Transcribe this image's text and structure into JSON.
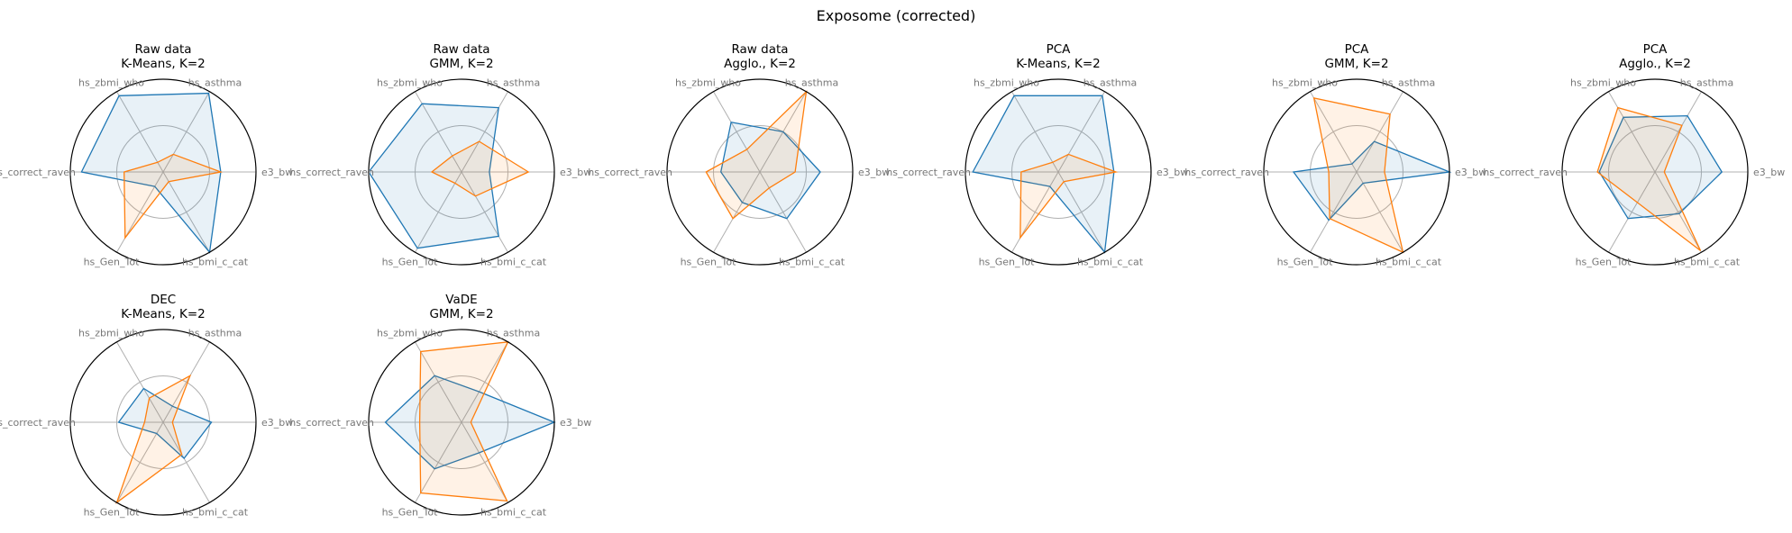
{
  "figure": {
    "title": "Exposome (corrected)"
  },
  "colors": {
    "cluster_0": "#1f77b4",
    "cluster_1": "#ff7f0e"
  },
  "chart_data": [
    {
      "type": "radar",
      "title_line1": "Raw data",
      "title_line2": "K-Means, K=2",
      "axes": [
        "e3_bw",
        "hs_asthma",
        "hs_zbmi_who",
        "hs_correct_raven",
        "hs_Gen_Tot",
        "hs_bmi_c_cat"
      ],
      "rmax": 1.0,
      "grid": [
        0.5
      ],
      "series": [
        {
          "values": [
            0.62,
            0.98,
            0.95,
            0.88,
            0.18,
            1.0
          ]
        },
        {
          "values": [
            0.62,
            0.22,
            0.12,
            0.42,
            0.82,
            0.12
          ]
        }
      ]
    },
    {
      "type": "radar",
      "title_line1": "Raw data",
      "title_line2": "GMM, K=2",
      "axes": [
        "e3_bw",
        "hs_asthma",
        "hs_zbmi_who",
        "hs_correct_raven",
        "hs_Gen_Tot",
        "hs_bmi_c_cat"
      ],
      "rmax": 1.0,
      "grid": [
        0.5
      ],
      "series": [
        {
          "values": [
            0.3,
            0.8,
            0.85,
            1.0,
            0.95,
            0.8
          ]
        },
        {
          "values": [
            0.72,
            0.38,
            0.2,
            0.32,
            0.14,
            0.3
          ]
        }
      ]
    },
    {
      "type": "radar",
      "title_line1": "Raw data",
      "title_line2": "Agglo., K=2",
      "axes": [
        "e3_bw",
        "hs_asthma",
        "hs_zbmi_who",
        "hs_correct_raven",
        "hs_Gen_Tot",
        "hs_bmi_c_cat"
      ],
      "rmax": 1.0,
      "grid": [
        0.5
      ],
      "series": [
        {
          "values": [
            0.65,
            0.5,
            0.62,
            0.42,
            0.38,
            0.58
          ]
        },
        {
          "values": [
            0.38,
            1.0,
            0.28,
            0.58,
            0.58,
            0.2
          ]
        }
      ]
    },
    {
      "type": "radar",
      "title_line1": "PCA",
      "title_line2": "K-Means, K=2",
      "axes": [
        "e3_bw",
        "hs_asthma",
        "hs_zbmi_who",
        "hs_correct_raven",
        "hs_Gen_Tot",
        "hs_bmi_c_cat"
      ],
      "rmax": 1.0,
      "grid": [
        0.5
      ],
      "series": [
        {
          "values": [
            0.6,
            0.95,
            0.95,
            0.92,
            0.18,
            1.0
          ]
        },
        {
          "values": [
            0.62,
            0.22,
            0.12,
            0.4,
            0.82,
            0.12
          ]
        }
      ]
    },
    {
      "type": "radar",
      "title_line1": "PCA",
      "title_line2": "GMM, K=2",
      "axes": [
        "e3_bw",
        "hs_asthma",
        "hs_zbmi_who",
        "hs_correct_raven",
        "hs_Gen_Tot",
        "hs_bmi_c_cat"
      ],
      "rmax": 1.0,
      "grid": [
        0.5
      ],
      "series": [
        {
          "values": [
            1.0,
            0.38,
            0.1,
            0.68,
            0.6,
            0.14
          ]
        },
        {
          "values": [
            0.3,
            0.72,
            0.92,
            0.3,
            0.58,
            1.0
          ]
        }
      ]
    },
    {
      "type": "radar",
      "title_line1": "PCA",
      "title_line2": "Agglo., K=2",
      "axes": [
        "e3_bw",
        "hs_asthma",
        "hs_zbmi_who",
        "hs_correct_raven",
        "hs_Gen_Tot",
        "hs_bmi_c_cat"
      ],
      "rmax": 1.0,
      "grid": [
        0.5
      ],
      "series": [
        {
          "values": [
            0.72,
            0.7,
            0.68,
            0.6,
            0.58,
            0.52
          ]
        },
        {
          "values": [
            0.1,
            0.58,
            0.8,
            0.62,
            0.38,
            0.98
          ]
        }
      ]
    },
    {
      "type": "radar",
      "title_line1": "DEC",
      "title_line2": "K-Means, K=2",
      "axes": [
        "e3_bw",
        "hs_asthma",
        "hs_zbmi_who",
        "hs_correct_raven",
        "hs_Gen_Tot",
        "hs_bmi_c_cat"
      ],
      "rmax": 1.0,
      "grid": [
        0.5
      ],
      "series": [
        {
          "values": [
            0.52,
            0.2,
            0.42,
            0.48,
            0.14,
            0.45
          ]
        },
        {
          "values": [
            0.1,
            0.58,
            0.3,
            0.2,
            1.0,
            0.4
          ]
        }
      ]
    },
    {
      "type": "radar",
      "title_line1": "VaDE",
      "title_line2": "GMM, K=2",
      "axes": [
        "e3_bw",
        "hs_asthma",
        "hs_zbmi_who",
        "hs_correct_raven",
        "hs_Gen_Tot",
        "hs_bmi_c_cat"
      ],
      "rmax": 1.0,
      "grid": [
        0.5
      ],
      "series": [
        {
          "values": [
            1.0,
            0.38,
            0.58,
            0.82,
            0.58,
            0.38
          ]
        },
        {
          "values": [
            0.1,
            1.0,
            0.88,
            0.45,
            0.88,
            0.98
          ]
        }
      ]
    }
  ]
}
